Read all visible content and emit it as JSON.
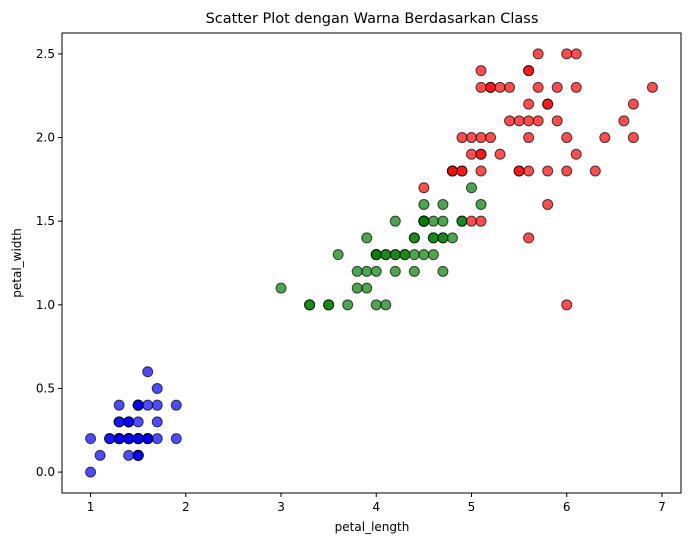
{
  "chart_data": {
    "type": "scatter",
    "title": "Scatter Plot dengan Warna Berdasarkan Class",
    "xlabel": "petal_length",
    "ylabel": "petal_width",
    "xlim": [
      0.7,
      7.2
    ],
    "ylim": [
      -0.125,
      2.625
    ],
    "xticks": [
      1,
      2,
      3,
      4,
      5,
      6,
      7
    ],
    "xtick_labels": [
      "1",
      "2",
      "3",
      "4",
      "5",
      "6",
      "7"
    ],
    "yticks": [
      0.0,
      0.5,
      1.0,
      1.5,
      2.0,
      2.5
    ],
    "ytick_labels": [
      "0.0",
      "0.5",
      "1.0",
      "1.5",
      "2.0",
      "2.5"
    ],
    "grid": false,
    "legend": "none",
    "point_opacity": 0.7,
    "series": [
      {
        "color": "#0000ff",
        "points": [
          [
            1.4,
            0.2
          ],
          [
            1.4,
            0.2
          ],
          [
            1.3,
            0.2
          ],
          [
            1.5,
            0.2
          ],
          [
            1.4,
            0.2
          ],
          [
            1.7,
            0.4
          ],
          [
            1.4,
            0.3
          ],
          [
            1.5,
            0.2
          ],
          [
            1.4,
            0.2
          ],
          [
            1.5,
            0.1
          ],
          [
            1.5,
            0.2
          ],
          [
            1.6,
            0.2
          ],
          [
            1.4,
            0.1
          ],
          [
            1.1,
            0.1
          ],
          [
            1.2,
            0.2
          ],
          [
            1.5,
            0.4
          ],
          [
            1.3,
            0.4
          ],
          [
            1.4,
            0.3
          ],
          [
            1.7,
            0.3
          ],
          [
            1.5,
            0.3
          ],
          [
            1.7,
            0.2
          ],
          [
            1.5,
            0.4
          ],
          [
            1.0,
            0.2
          ],
          [
            1.7,
            0.5
          ],
          [
            1.9,
            0.2
          ],
          [
            1.6,
            0.2
          ],
          [
            1.6,
            0.4
          ],
          [
            1.5,
            0.2
          ],
          [
            1.4,
            0.2
          ],
          [
            1.6,
            0.2
          ],
          [
            1.6,
            0.2
          ],
          [
            1.5,
            0.4
          ],
          [
            1.5,
            0.1
          ],
          [
            1.4,
            0.2
          ],
          [
            1.5,
            0.1
          ],
          [
            1.2,
            0.2
          ],
          [
            1.3,
            0.2
          ],
          [
            1.5,
            0.1
          ],
          [
            1.3,
            0.2
          ],
          [
            1.5,
            0.2
          ],
          [
            1.3,
            0.3
          ],
          [
            1.3,
            0.3
          ],
          [
            1.3,
            0.2
          ],
          [
            1.6,
            0.6
          ],
          [
            1.9,
            0.4
          ],
          [
            1.4,
            0.3
          ],
          [
            1.6,
            0.2
          ],
          [
            1.4,
            0.2
          ],
          [
            1.5,
            0.2
          ],
          [
            1.4,
            0.2
          ],
          [
            1.0,
            0.0
          ]
        ]
      },
      {
        "color": "#008000",
        "points": [
          [
            4.7,
            1.4
          ],
          [
            4.5,
            1.5
          ],
          [
            4.9,
            1.5
          ],
          [
            4.0,
            1.3
          ],
          [
            4.6,
            1.5
          ],
          [
            4.5,
            1.3
          ],
          [
            4.7,
            1.6
          ],
          [
            3.3,
            1.0
          ],
          [
            4.6,
            1.3
          ],
          [
            3.9,
            1.4
          ],
          [
            3.5,
            1.0
          ],
          [
            4.2,
            1.5
          ],
          [
            4.0,
            1.0
          ],
          [
            4.7,
            1.4
          ],
          [
            3.6,
            1.3
          ],
          [
            4.4,
            1.4
          ],
          [
            4.5,
            1.5
          ],
          [
            4.1,
            1.0
          ],
          [
            4.5,
            1.5
          ],
          [
            3.9,
            1.1
          ],
          [
            4.8,
            1.8
          ],
          [
            4.0,
            1.3
          ],
          [
            4.9,
            1.5
          ],
          [
            4.7,
            1.2
          ],
          [
            4.3,
            1.3
          ],
          [
            4.4,
            1.4
          ],
          [
            4.8,
            1.4
          ],
          [
            5.0,
            1.7
          ],
          [
            4.5,
            1.5
          ],
          [
            3.5,
            1.0
          ],
          [
            3.8,
            1.1
          ],
          [
            3.7,
            1.0
          ],
          [
            3.9,
            1.2
          ],
          [
            5.1,
            1.6
          ],
          [
            4.5,
            1.5
          ],
          [
            4.5,
            1.6
          ],
          [
            4.7,
            1.5
          ],
          [
            4.4,
            1.3
          ],
          [
            4.1,
            1.3
          ],
          [
            4.0,
            1.3
          ],
          [
            4.4,
            1.2
          ],
          [
            4.6,
            1.4
          ],
          [
            4.0,
            1.2
          ],
          [
            3.3,
            1.0
          ],
          [
            4.2,
            1.3
          ],
          [
            4.2,
            1.2
          ],
          [
            4.2,
            1.3
          ],
          [
            4.3,
            1.3
          ],
          [
            3.0,
            1.1
          ],
          [
            4.1,
            1.3
          ],
          [
            3.8,
            1.2
          ],
          [
            4.6,
            1.4
          ]
        ]
      },
      {
        "color": "#ff0000",
        "points": [
          [
            6.0,
            2.5
          ],
          [
            5.1,
            1.9
          ],
          [
            5.9,
            2.1
          ],
          [
            5.6,
            1.8
          ],
          [
            5.8,
            2.2
          ],
          [
            6.6,
            2.1
          ],
          [
            4.5,
            1.7
          ],
          [
            6.3,
            1.8
          ],
          [
            5.8,
            1.8
          ],
          [
            6.1,
            2.5
          ],
          [
            5.1,
            2.0
          ],
          [
            5.3,
            1.9
          ],
          [
            5.5,
            2.1
          ],
          [
            5.0,
            2.0
          ],
          [
            5.1,
            2.4
          ],
          [
            5.3,
            2.3
          ],
          [
            5.5,
            1.8
          ],
          [
            6.7,
            2.2
          ],
          [
            6.9,
            2.3
          ],
          [
            5.0,
            1.5
          ],
          [
            5.7,
            2.3
          ],
          [
            4.9,
            2.0
          ],
          [
            6.7,
            2.0
          ],
          [
            4.9,
            1.8
          ],
          [
            5.7,
            2.1
          ],
          [
            6.0,
            1.8
          ],
          [
            4.8,
            1.8
          ],
          [
            4.9,
            1.8
          ],
          [
            5.6,
            2.1
          ],
          [
            5.8,
            1.6
          ],
          [
            6.1,
            1.9
          ],
          [
            6.4,
            2.0
          ],
          [
            5.6,
            2.2
          ],
          [
            5.1,
            1.5
          ],
          [
            5.6,
            1.4
          ],
          [
            6.1,
            2.3
          ],
          [
            5.6,
            2.4
          ],
          [
            5.5,
            1.8
          ],
          [
            4.8,
            1.8
          ],
          [
            5.4,
            2.1
          ],
          [
            5.6,
            2.4
          ],
          [
            5.1,
            2.3
          ],
          [
            5.9,
            2.3
          ],
          [
            5.7,
            2.5
          ],
          [
            5.2,
            2.3
          ],
          [
            5.0,
            1.9
          ],
          [
            5.2,
            2.0
          ],
          [
            5.4,
            2.3
          ],
          [
            5.1,
            1.8
          ],
          [
            5.8,
            2.2
          ],
          [
            5.6,
            2.0
          ],
          [
            6.0,
            1.0
          ],
          [
            6.0,
            2.0
          ],
          [
            5.1,
            1.9
          ],
          [
            5.2,
            2.3
          ]
        ]
      }
    ]
  }
}
